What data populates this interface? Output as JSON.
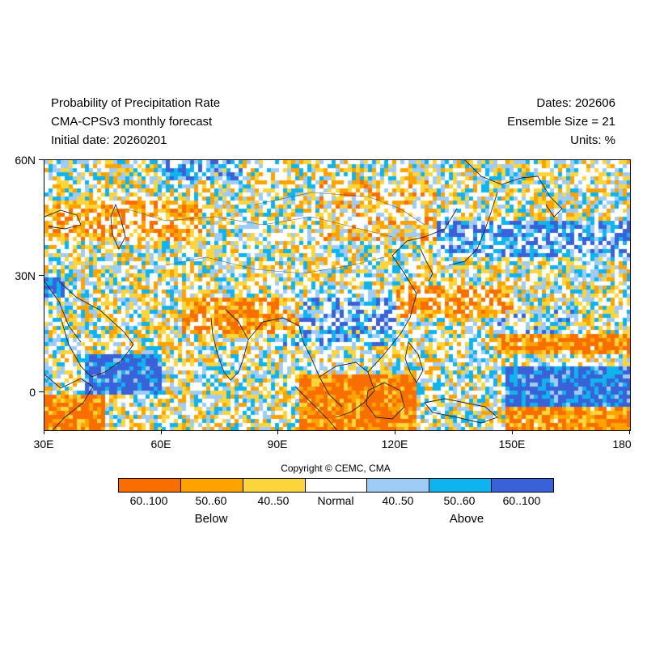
{
  "header": {
    "title": "Probability of Precipitation Rate",
    "model": "CMA-CPSv3 monthly forecast",
    "initial_date": "Initial date: 20260201",
    "dates": "Dates: 202606",
    "ensemble": "Ensemble Size = 21",
    "units": "Units: %"
  },
  "axes": {
    "x_labels": [
      "30E",
      "60E",
      "90E",
      "120E",
      "150E",
      "180"
    ],
    "y_labels": [
      "60N",
      "30N",
      "0"
    ]
  },
  "copyright": "Copyright © CEMC, CMA",
  "legend": {
    "labels": [
      "60..100",
      "50..60",
      "40..50",
      "Normal",
      "40..50",
      "50..60",
      "60..100"
    ],
    "colors": [
      "#f86e00",
      "#fca300",
      "#fbd53c",
      "#ffffff",
      "#9fcbf7",
      "#0fb4ee",
      "#3a62d8"
    ],
    "below_label": "Below",
    "above_label": "Above"
  },
  "map_data": {
    "lon_range": [
      30,
      180
    ],
    "lat_range": [
      -10,
      60
    ],
    "categories": [
      "below-strong",
      "below-mid",
      "below-weak",
      "normal",
      "above-weak",
      "above-mid",
      "above-strong"
    ]
  }
}
